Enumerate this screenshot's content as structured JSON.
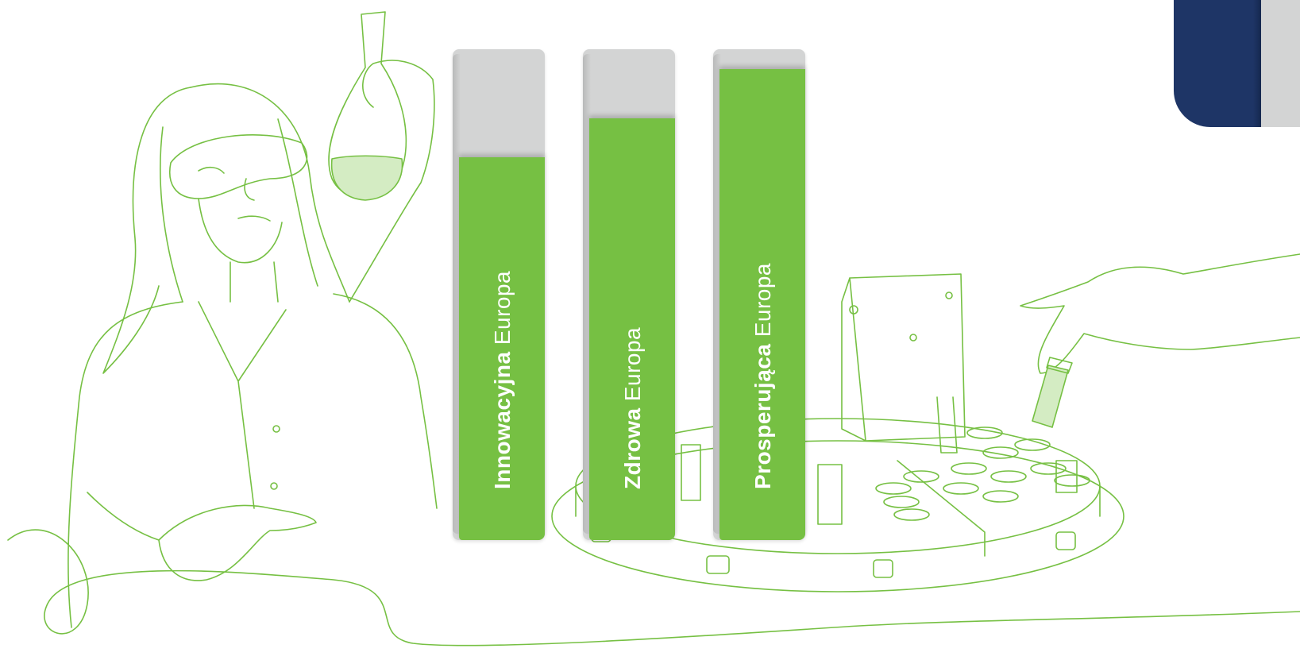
{
  "colors": {
    "accent_green": "#76c043",
    "bar_track_grey": "#d3d4d4",
    "navy": "#1e3566",
    "background": "#ffffff"
  },
  "illustration": {
    "icon": "scientist-and-autosampler-line-art"
  },
  "corner_logo": {
    "icon": "navy-and-grey-corner-mark"
  },
  "bars": [
    {
      "bold": "Innowacyjna",
      "light": "Europa",
      "level_percent": 78
    },
    {
      "bold": "Zdrowa",
      "light": "Europa",
      "level_percent": 86
    },
    {
      "bold": "Prosperująca",
      "light": "Europa",
      "level_percent": 96
    }
  ]
}
